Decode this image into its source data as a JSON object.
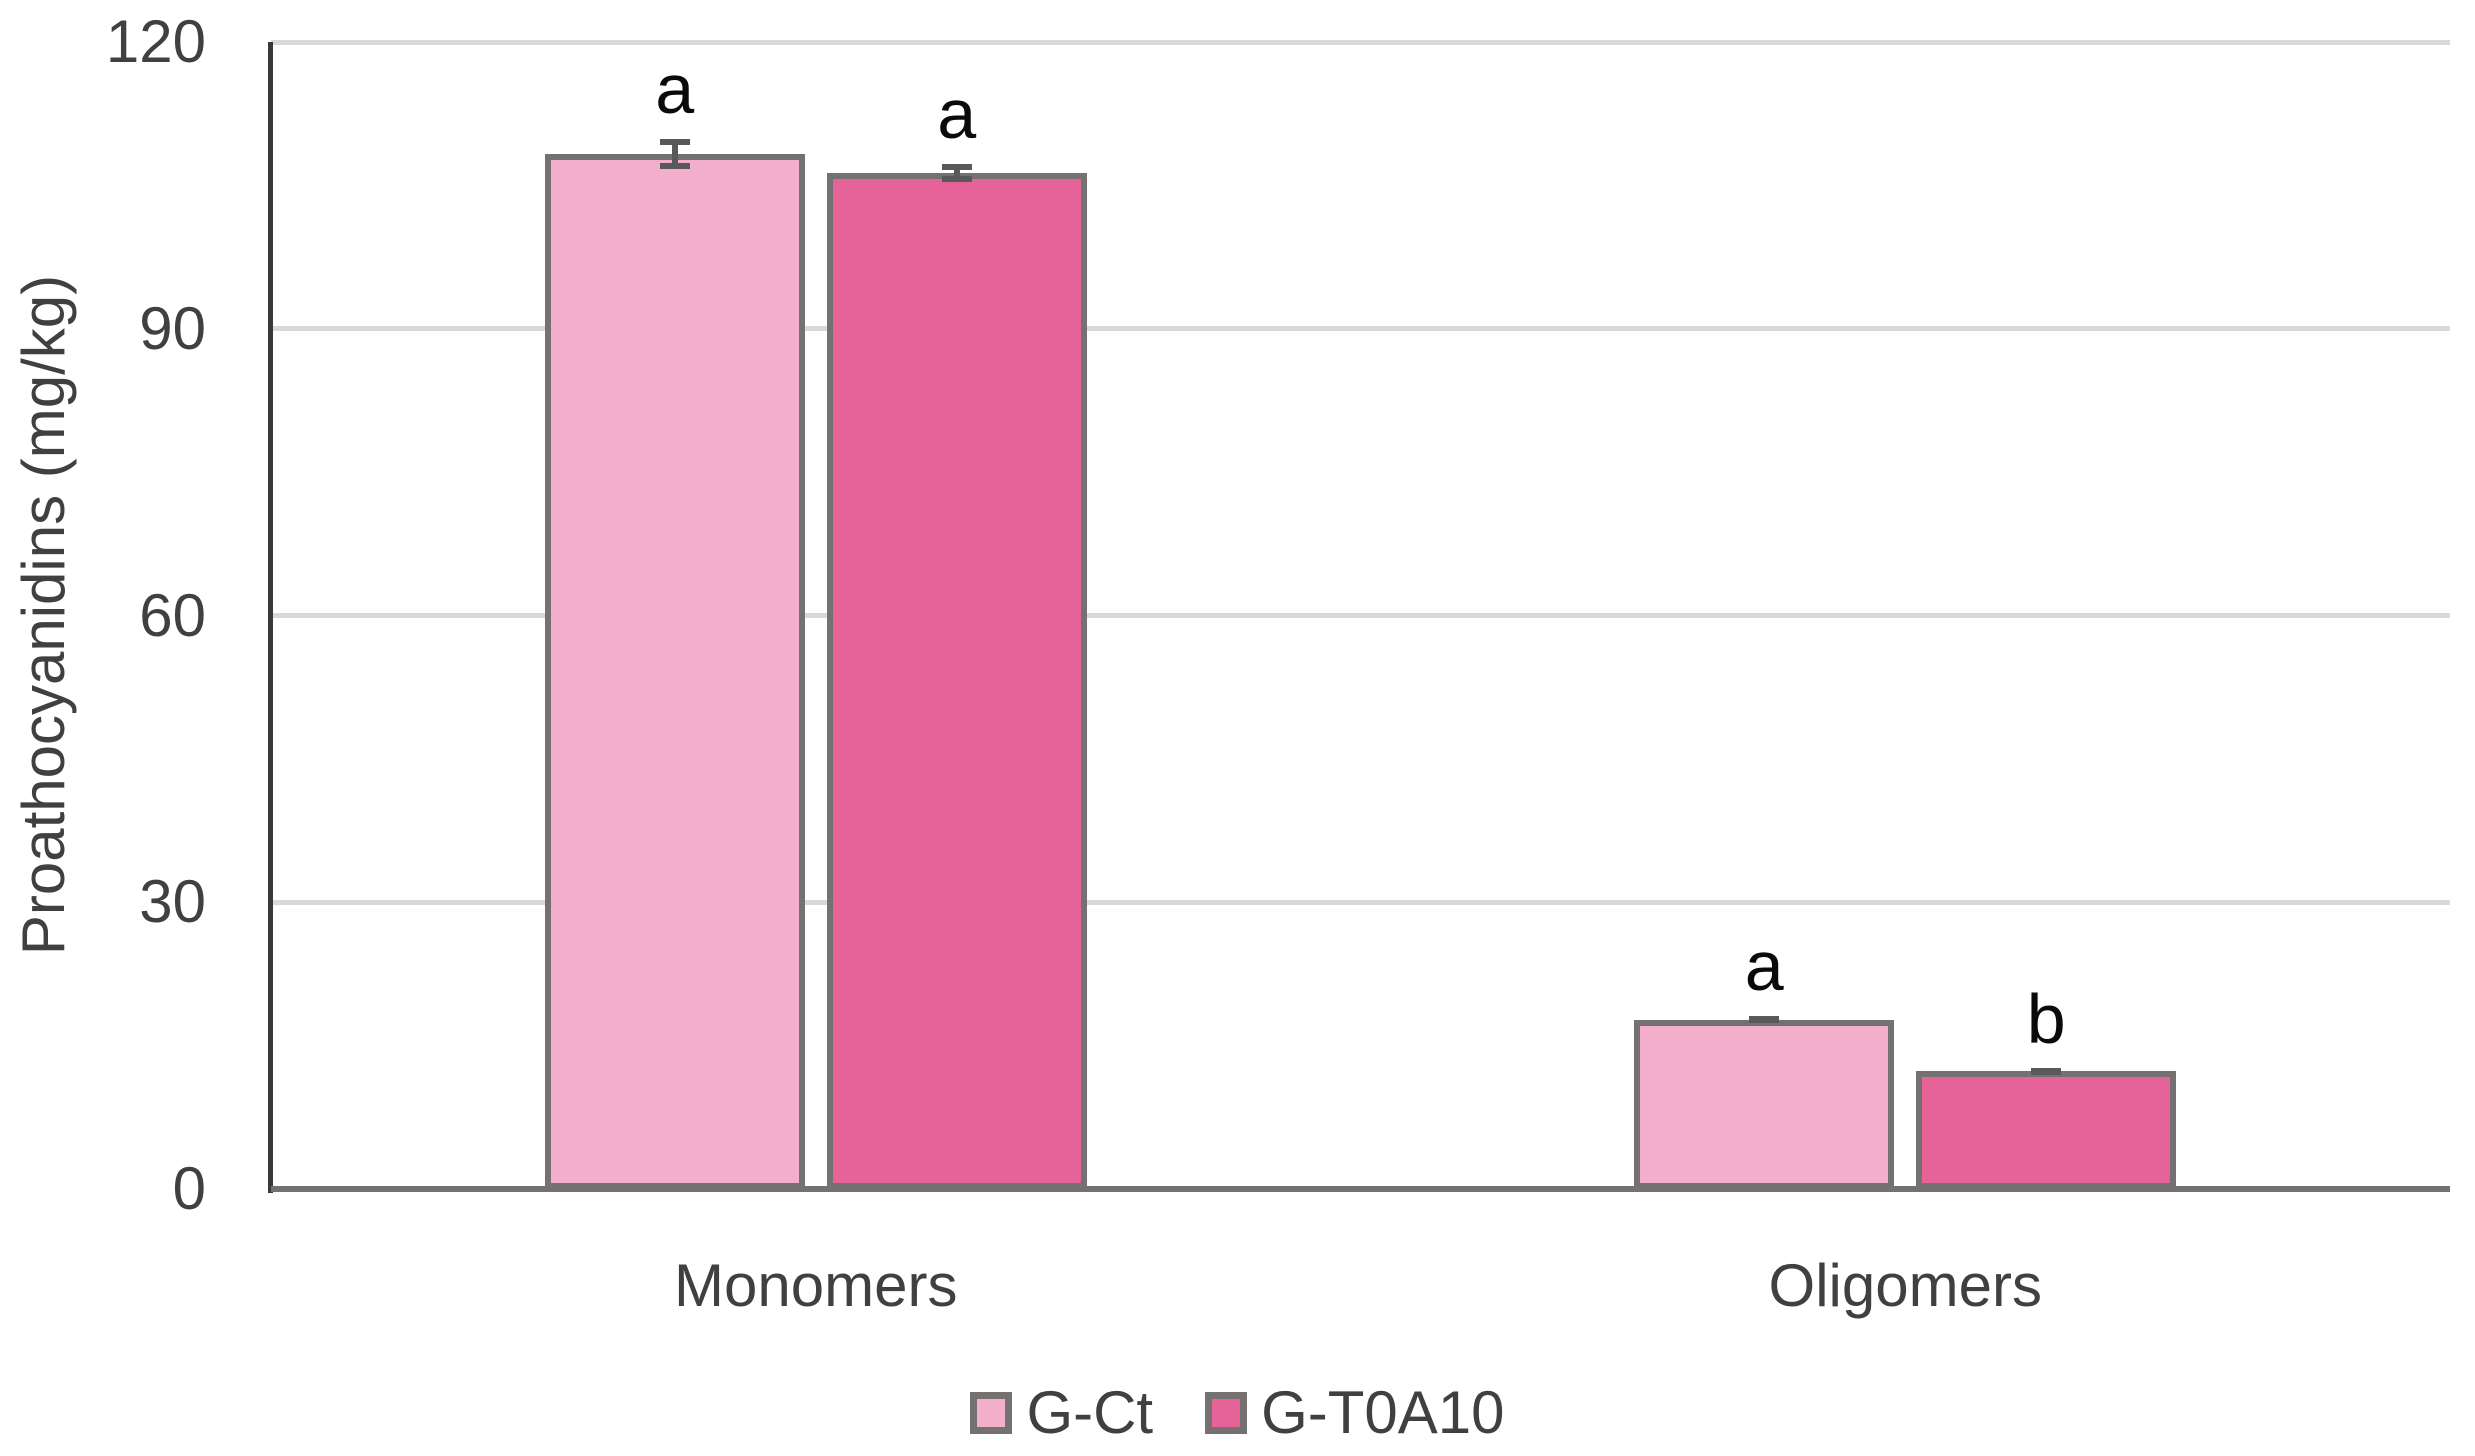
{
  "chart_data": {
    "type": "bar",
    "title": "",
    "categories": [
      "Monomers",
      "Oligomers"
    ],
    "series": [
      {
        "name": "G-Ct",
        "color": "#F3AECB",
        "values": [
          108.3,
          17.7
        ],
        "errors": [
          1.6,
          0.35
        ],
        "sig_labels": [
          "a",
          "a"
        ]
      },
      {
        "name": "G-T0A10",
        "color": "#E6639A",
        "values": [
          106.3,
          12.3
        ],
        "errors": [
          0.9,
          0.3
        ],
        "sig_labels": [
          "a",
          "b"
        ]
      }
    ],
    "xlabel": "",
    "ylabel": "Proathocyanidins (mg/kg)",
    "ylim": [
      0,
      120
    ],
    "yticks": [
      0,
      30,
      60,
      90,
      120
    ],
    "grid": "horizontal",
    "legend_position": "bottom"
  },
  "styles": {
    "gridline_color": "#D9D9D9",
    "y_axis_color": "#3B3838",
    "x_axis_color": "#767171",
    "bar_border_color": "#767171",
    "error_bar_color": "#595959",
    "tick_text_color": "#404040",
    "sig_letter_color": "#0a0a0a"
  }
}
